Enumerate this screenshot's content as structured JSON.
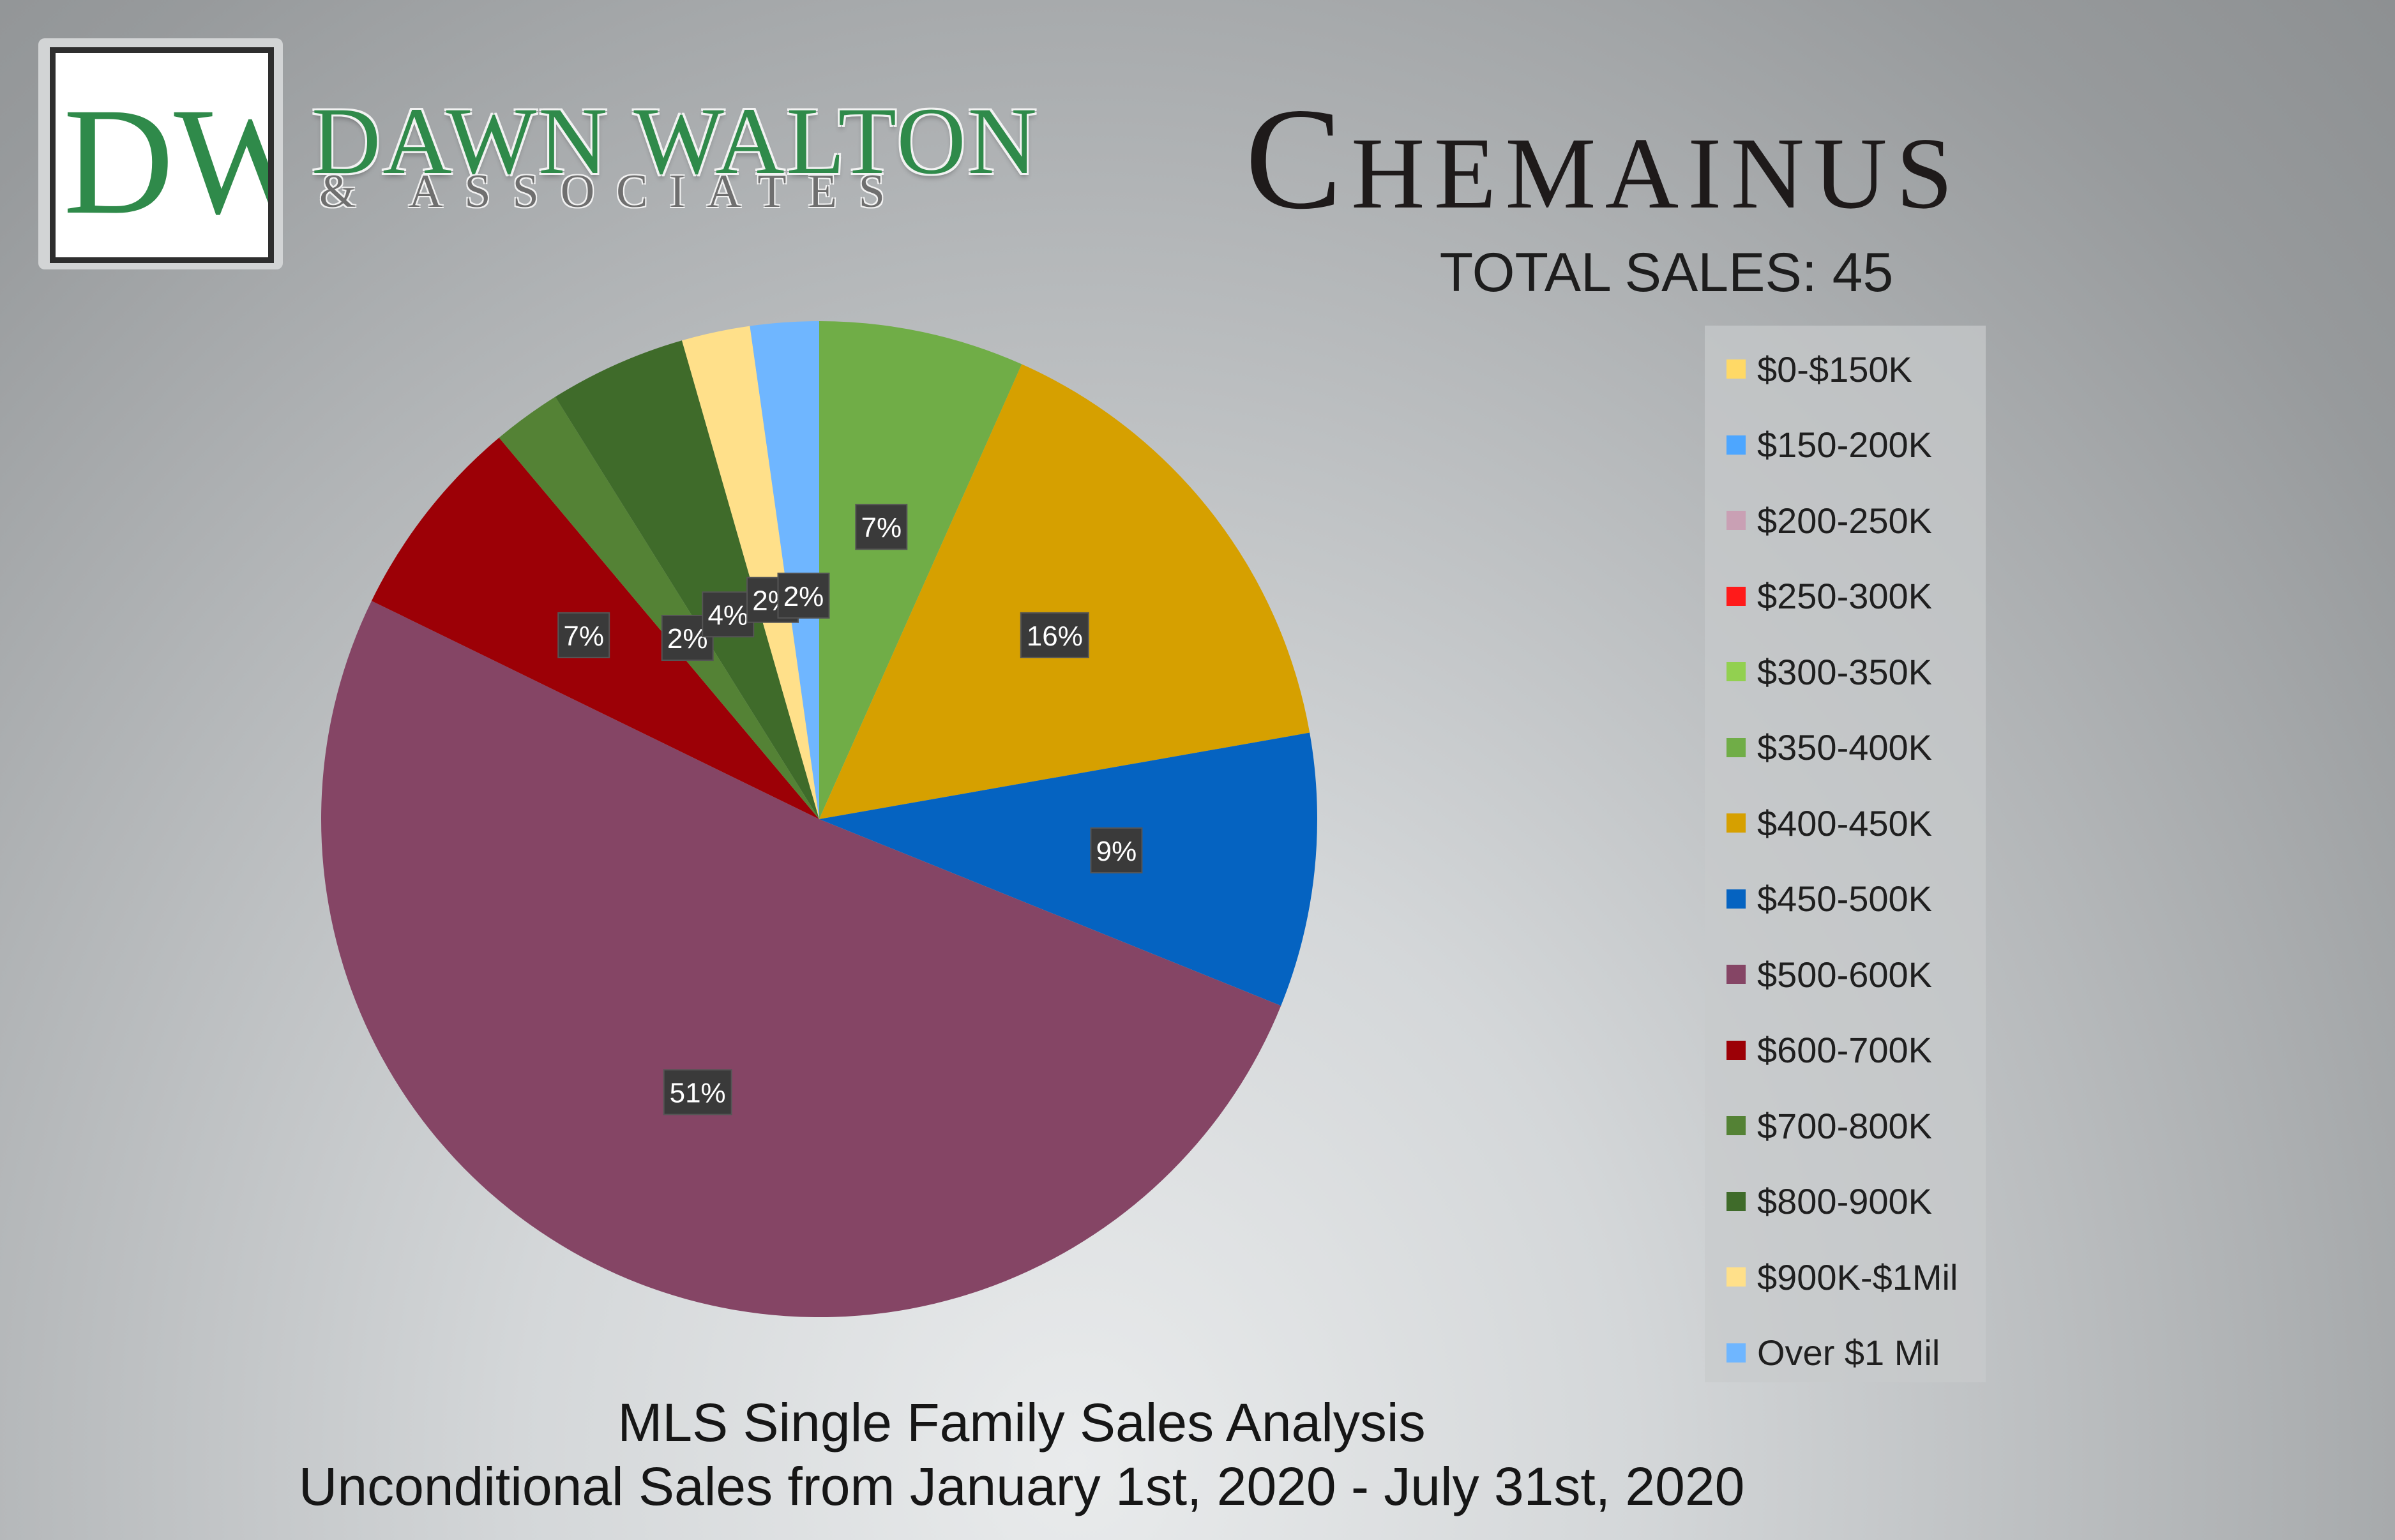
{
  "brand": {
    "logo_letters": "DW",
    "name": "DAWN WALTON",
    "sub": "& ASSOCIATES"
  },
  "header": {
    "city": "Chemainus",
    "total_sales": "TOTAL SALES: 45"
  },
  "footer": {
    "line1": "MLS Single Family Sales Analysis",
    "line2": "Unconditional Sales from January 1st, 2020 - July 31st, 2020"
  },
  "chart_data": {
    "type": "pie",
    "title": "",
    "legend_position": "right",
    "categories": [
      "$0-$150K",
      "$150-200K",
      "$200-250K",
      "$250-300K",
      "$300-350K",
      "$350-400K",
      "$400-450K",
      "$450-500K",
      "$500-600K",
      "$600-700K",
      "$700-800K",
      "$800-900K",
      "$900K-$1Mil",
      "Over $1 Mil"
    ],
    "values": [
      0,
      0,
      0,
      0,
      0,
      3,
      7,
      4,
      23,
      3,
      1,
      2,
      1,
      1
    ],
    "data_labels": [
      "",
      "",
      "",
      "",
      "",
      "7%",
      "16%",
      "9%",
      "51%",
      "7%",
      "2%",
      "4%",
      "2%",
      "2%"
    ],
    "colors": [
      "#ffd966",
      "#4da6ff",
      "#c9a0b4",
      "#ff1a1a",
      "#92d050",
      "#70ad47",
      "#d6a000",
      "#0563c1",
      "#854565",
      "#9c0006",
      "#548235",
      "#3f6b2a",
      "#ffe08a",
      "#6fb6ff"
    ]
  }
}
